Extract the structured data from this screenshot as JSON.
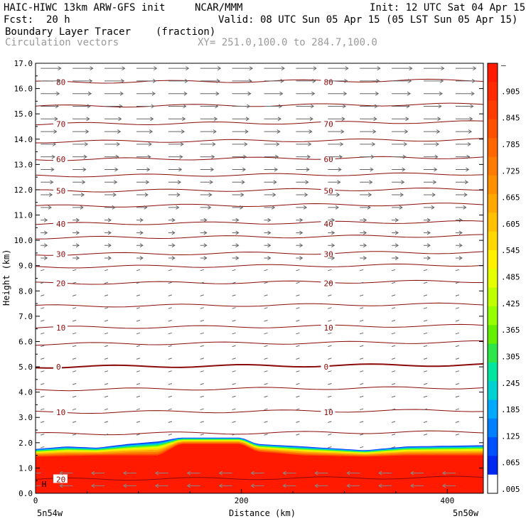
{
  "header": {
    "model": "HAIC-HIWC 13km ARW-GFS init",
    "org": "NCAR/MMM",
    "init": "Init: 12 UTC Sat 04 Apr 15",
    "fcst_label": "Fcst:",
    "fcst_value": "20 h",
    "valid": "Valid: 08 UTC Sun 05 Apr 15 (05 LST Sun 05 Apr 15)",
    "field": "Boundary Layer Tracer",
    "units": "(fraction)",
    "vectors": "Circulation vectors",
    "xy": "XY= 251.0,100.0 to 284.7,100.0"
  },
  "chart_data": {
    "type": "heatmap",
    "ylabel": "Height (km)",
    "xlabel": "Distance (km)",
    "ylim": [
      0,
      17
    ],
    "xlim": [
      0,
      435
    ],
    "y_ticks": [
      "0.0",
      "1.0",
      "2.0",
      "3.0",
      "4.0",
      "5.0",
      "6.0",
      "7.0",
      "8.0",
      "9.0",
      "10.0",
      "11.0",
      "12.0",
      "13.0",
      "14.0",
      "15.0",
      "16.0",
      "17.0"
    ],
    "x_ticks": [
      "0",
      "200",
      "400"
    ],
    "x_ticks_values": [
      0,
      200,
      400
    ],
    "x_end_labels": [
      "5n54w",
      "5n50w"
    ],
    "colorbar_labels": [
      "–",
      ".905",
      ".845",
      ".785",
      ".725",
      ".665",
      ".605",
      ".545",
      ".485",
      ".425",
      ".365",
      ".305",
      ".245",
      ".185",
      ".125",
      ".065",
      ".005"
    ],
    "colorbar_colors": [
      "#ff1a00",
      "#ff2a00",
      "#ff3c00",
      "#ff5000",
      "#ff6600",
      "#ff7a00",
      "#ff9000",
      "#ffa800",
      "#ffc000",
      "#ffd800",
      "#fff000",
      "#e6ff00",
      "#c0ff00",
      "#96ff00",
      "#64f000",
      "#2ee64a",
      "#00e6a0",
      "#00d2d2",
      "#00aaff",
      "#0080ff",
      "#0050ff",
      "#0028f0",
      "#ffffff"
    ],
    "temp_contour_labels": [
      {
        "label": "80",
        "h": 16.25
      },
      {
        "label": "70",
        "h": 14.6
      },
      {
        "label": "60",
        "h": 13.2
      },
      {
        "label": "50",
        "h": 11.95
      },
      {
        "label": "40",
        "h": 10.65
      },
      {
        "label": "30",
        "h": 9.45
      },
      {
        "label": "20",
        "h": 8.3
      },
      {
        "label": "10",
        "h": 6.55
      },
      {
        "label": "0",
        "h": 5.0
      },
      {
        "label": "10",
        "h": 3.2
      },
      {
        "label": "20",
        "h": 0.55
      }
    ],
    "boundary_top_km": [
      [
        0,
        1.75
      ],
      [
        30,
        1.85
      ],
      [
        60,
        1.8
      ],
      [
        90,
        1.95
      ],
      [
        120,
        2.05
      ],
      [
        140,
        2.2
      ],
      [
        200,
        2.2
      ],
      [
        215,
        1.95
      ],
      [
        260,
        1.85
      ],
      [
        320,
        1.7
      ],
      [
        360,
        1.85
      ],
      [
        435,
        1.9
      ]
    ],
    "red_top_km": [
      [
        0,
        1.45
      ],
      [
        60,
        1.5
      ],
      [
        120,
        1.5
      ],
      [
        140,
        1.95
      ],
      [
        200,
        1.95
      ],
      [
        215,
        1.65
      ],
      [
        260,
        1.5
      ],
      [
        320,
        1.45
      ],
      [
        360,
        1.5
      ],
      [
        435,
        1.5
      ]
    ],
    "marker": "H"
  }
}
